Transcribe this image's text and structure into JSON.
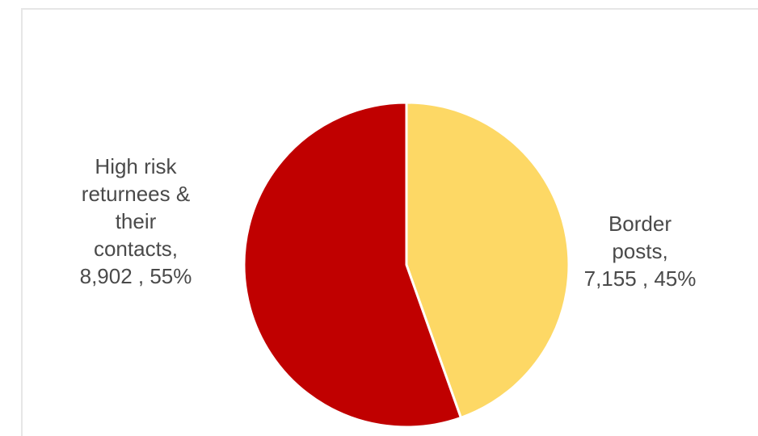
{
  "chart_data": {
    "type": "pie",
    "slices": [
      {
        "label": "Border posts",
        "value": 7155,
        "percent": 45,
        "color": "#fdd865",
        "display_label": "Border\nposts,\n7,155 , 45%"
      },
      {
        "label": "High risk returnees & their contacts",
        "value": 8902,
        "percent": 55,
        "color": "#c00000",
        "display_label": "High risk\nreturnees &\ntheir\ncontacts,\n8,902 , 55%"
      }
    ],
    "start_angle": "12 o'clock",
    "direction": "clockwise",
    "legend": "none",
    "slice_border_color": "#ffffff"
  }
}
